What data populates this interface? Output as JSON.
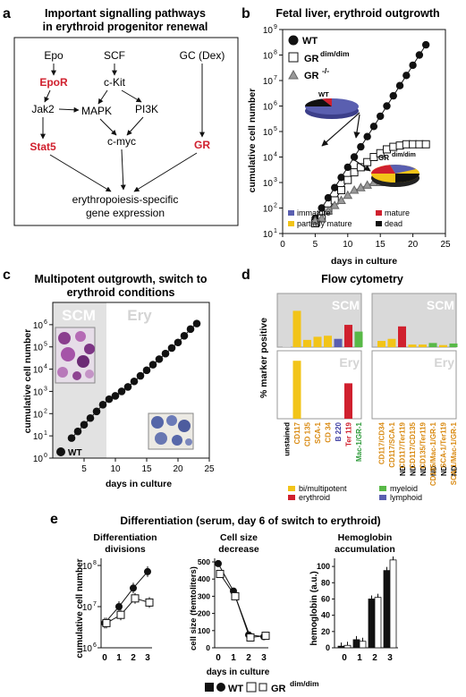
{
  "panel_a": {
    "letter": "a",
    "title_line1": "Important signalling pathways",
    "title_line2": "in erythroid progenitor renewal",
    "nodes": {
      "epo": "Epo",
      "scf": "SCF",
      "gc": "GC (Dex)",
      "epor": "EpoR",
      "ckit": "c-Kit",
      "jak2": "Jak2",
      "mapk": "MAPK",
      "pi3k": "PI3K",
      "stat5": "Stat5",
      "cmyc": "c-myc",
      "gr": "GR",
      "output_line1": "erythropoiesis-specific",
      "output_line2": "gene expression"
    },
    "highlight_color": "#d0202e"
  },
  "panel_b": {
    "letter": "b",
    "title": "Fetal liver, erythroid outgrowth",
    "pie_labels": {
      "wt": "WT",
      "gr_base": "GR",
      "gr_sup": "dim/dim"
    },
    "pie_legend": [
      {
        "label": "immature",
        "color": "#5a5fb0"
      },
      {
        "label": "mature",
        "color": "#d0202e"
      },
      {
        "label": "partially mature",
        "color": "#f2c418"
      },
      {
        "label": "dead",
        "color": "#111111"
      }
    ],
    "chart_data": {
      "type": "scatter",
      "xlabel": "days in culture",
      "ylabel": "cumulative cell number",
      "xlim": [
        0,
        25
      ],
      "ylim_log10": [
        1,
        9
      ],
      "x_ticks": [
        "0",
        "5",
        "10",
        "15",
        "20",
        "25"
      ],
      "y_ticks": [
        "10",
        "10",
        "10",
        "10",
        "10",
        "10",
        "10",
        "10",
        "10"
      ],
      "y_tick_exponents": [
        "1",
        "2",
        "3",
        "4",
        "5",
        "6",
        "7",
        "8",
        "9"
      ],
      "legend": [
        {
          "base": "WT",
          "sup": "",
          "marker": "filled-circle"
        },
        {
          "base": "GR",
          "sup": "dim/dim",
          "marker": "open-square"
        },
        {
          "base": "GR",
          "sup": "-/-",
          "marker": "grey-triangle"
        }
      ],
      "series": [
        {
          "name": "WT",
          "x": [
            5,
            6,
            7,
            8,
            9,
            10,
            11,
            12,
            13,
            14,
            15,
            16,
            17,
            18,
            19,
            20,
            21,
            22
          ],
          "log10_y": [
            1.6,
            2.0,
            2.4,
            2.8,
            3.2,
            3.6,
            4.0,
            4.4,
            4.8,
            5.2,
            5.6,
            6.0,
            6.4,
            6.8,
            7.2,
            7.6,
            8.0,
            8.4
          ]
        },
        {
          "name": "GR dim/dim",
          "x": [
            5,
            6,
            7,
            8,
            9,
            10,
            11,
            12,
            13,
            14,
            15,
            16,
            17,
            18,
            19,
            20,
            21,
            22
          ],
          "log10_y": [
            1.4,
            1.6,
            1.9,
            2.3,
            2.7,
            3.1,
            3.4,
            3.6,
            3.8,
            4.0,
            4.15,
            4.3,
            4.4,
            4.45,
            4.5,
            4.5,
            4.5,
            4.5
          ]
        },
        {
          "name": "GR -/-",
          "x": [
            5,
            6,
            7,
            8,
            9,
            10,
            11,
            12,
            13,
            14,
            15,
            16,
            17
          ],
          "log10_y": [
            1.5,
            1.6,
            1.9,
            2.1,
            2.3,
            2.5,
            2.7,
            2.8,
            2.9,
            3.0,
            3.0,
            3.05,
            3.1
          ]
        }
      ]
    }
  },
  "panel_c": {
    "letter": "c",
    "title_line1": "Multipotent outgrowth, switch to",
    "title_line2": "erythroid conditions",
    "region_scm": "SCM",
    "region_ery": "Ery",
    "chart_data": {
      "type": "scatter",
      "xlabel": "days in culture",
      "ylabel": "cumulative cell number",
      "xlim": [
        0,
        25
      ],
      "ylim_log10": [
        0,
        7
      ],
      "x_ticks": [
        "5",
        "10",
        "15",
        "20",
        "25"
      ],
      "y_ticks": [
        "10",
        "10",
        "10",
        "10",
        "10",
        "10",
        "10"
      ],
      "y_tick_exponents": [
        "0",
        "1",
        "2",
        "3",
        "4",
        "5",
        "6"
      ],
      "legend": [
        {
          "base": "WT",
          "marker": "filled-circle"
        }
      ],
      "series": [
        {
          "name": "WT",
          "x": [
            3,
            4,
            5,
            6,
            7,
            8,
            9,
            10,
            11,
            12,
            13,
            14,
            15,
            16,
            17,
            18,
            19,
            20,
            21,
            22,
            23
          ],
          "log10_y": [
            0.9,
            1.2,
            1.5,
            1.8,
            2.1,
            2.4,
            2.65,
            2.8,
            3.0,
            3.2,
            3.45,
            3.7,
            3.95,
            4.2,
            4.45,
            4.7,
            4.95,
            5.2,
            5.5,
            5.8,
            6.05
          ]
        }
      ]
    }
  },
  "panel_d": {
    "letter": "d",
    "title": "Flow cytometry",
    "ylabel": "% marker positive",
    "scm_label": "SCM",
    "ery_label": "Ery",
    "nd": "ND",
    "legend": [
      {
        "label": "bi/multipotent",
        "color": "#f2c418"
      },
      {
        "label": "myeloid",
        "color": "#58b947"
      },
      {
        "label": "erythroid",
        "color": "#d0202e"
      },
      {
        "label": "lymphoid",
        "color": "#5a5fb0"
      }
    ],
    "chart_data": [
      {
        "type": "bar",
        "panel": "left",
        "categories": [
          "unstained",
          "CD117",
          "CD 135",
          "SCA-1",
          "CD 34",
          "B 220",
          "Ter 119",
          "Mac-1/GR-1"
        ],
        "category_colors": [
          "#000000",
          "#d98a12",
          "#d98a12",
          "#d98a12",
          "#d98a12",
          "#3a3aa0",
          "#d0202e",
          "#2e9a3a"
        ],
        "bar_colors": [
          "#cccccc",
          "#f2c418",
          "#f2c418",
          "#f2c418",
          "#f2c418",
          "#5a5fb0",
          "#d0202e",
          "#58b947"
        ],
        "scm_values": [
          1,
          70,
          14,
          20,
          22,
          16,
          43,
          30
        ],
        "ery_values": [
          0,
          90,
          0,
          0,
          0,
          0,
          55,
          0
        ]
      },
      {
        "type": "bar",
        "panel": "right",
        "categories": [
          "CD117/CD34",
          "CD117/SCA-1",
          "CD117/Ter119",
          "CD117/CD135",
          "CD135/Ter119",
          "CD135/Mac-1/GR-1",
          "SCA-1/Ter119",
          "SCA-1/Mac-1/GR-1"
        ],
        "category_colors": [
          "#d98a12",
          "#d98a12",
          "#d98a12",
          "#d98a12",
          "#d98a12",
          "#d98a12",
          "#d98a12",
          "#d98a12"
        ],
        "bar_colors": [
          "#f2c418",
          "#f2c418",
          "#d0202e",
          "#f2c418",
          "#f2c418",
          "#58b947",
          "#f2c418",
          "#58b947"
        ],
        "scm_values": [
          12,
          16,
          40,
          5,
          5,
          8,
          4,
          7
        ],
        "ery_values": [
          0,
          0,
          0,
          0,
          0,
          0,
          0,
          0
        ],
        "ery_nd": [
          false,
          false,
          true,
          true,
          true,
          true,
          true,
          true
        ]
      }
    ]
  },
  "panel_e": {
    "letter": "e",
    "title": "Differentiation  (serum, day 6 of switch to erythroid)",
    "shared_xlabel": "days in culture",
    "legend": {
      "wt": "WT",
      "gr_base": "GR",
      "gr_sup": "dim/dim"
    },
    "chart_data": [
      {
        "type": "line",
        "title_line1": "Differentiation",
        "title_line2": "divisions",
        "ylabel": "cumulative cell number",
        "x": [
          0,
          1,
          2,
          3
        ],
        "x_ticks": [
          "0",
          "1",
          "2",
          "3"
        ],
        "y_ticks": [
          "10",
          "10",
          "10"
        ],
        "y_tick_exponents": [
          "6",
          "7",
          "8"
        ],
        "ylim_log10": [
          6,
          8
        ],
        "series": [
          {
            "name": "WT",
            "log10_y": [
              6.6,
              7.0,
              7.45,
              7.85
            ]
          },
          {
            "name": "GR dim/dim",
            "log10_y": [
              6.6,
              6.8,
              7.2,
              7.1
            ]
          }
        ]
      },
      {
        "type": "line",
        "title_line1": "Cell size",
        "title_line2": "decrease",
        "ylabel": "cell size (femtoliters)",
        "x": [
          0,
          1,
          2,
          3
        ],
        "x_ticks": [
          "0",
          "1",
          "2",
          "3"
        ],
        "y_ticks": [
          "0",
          "100",
          "200",
          "300",
          "400",
          "500"
        ],
        "ylim": [
          0,
          500
        ],
        "series": [
          {
            "name": "WT",
            "values": [
              490,
              330,
              75,
              65
            ]
          },
          {
            "name": "GR dim/dim",
            "values": [
              430,
              300,
              60,
              70
            ]
          }
        ]
      },
      {
        "type": "bar",
        "title_line1": "Hemoglobin",
        "title_line2": "accumulation",
        "ylabel": "hemoglobin (a.u.)",
        "categories": [
          "0",
          "1",
          "2",
          "3"
        ],
        "y_ticks": [
          "0",
          "20",
          "40",
          "60",
          "80",
          "100"
        ],
        "ylim": [
          0,
          110
        ],
        "series": [
          {
            "name": "WT",
            "values": [
              2,
              10,
              60,
              95
            ]
          },
          {
            "name": "GR dim/dim",
            "values": [
              3,
              8,
              62,
              108
            ]
          }
        ]
      }
    ]
  }
}
